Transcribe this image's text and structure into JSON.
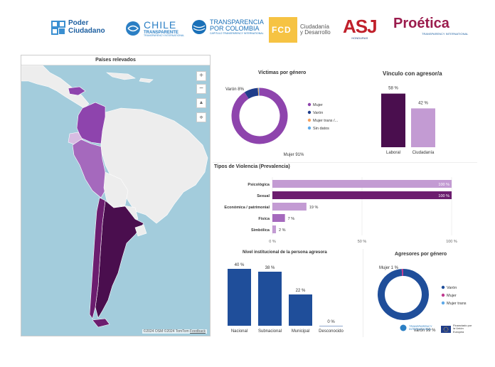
{
  "logos": {
    "poder": [
      "Poder",
      "Ciudadano"
    ],
    "chile": "CHILE",
    "chile_sub": "TRANSPARENTE",
    "chile_tag": "TRANSPARENCY INTERNATIONAL",
    "colombia": [
      "TRANSPARENCIA",
      "POR COLOMBIA"
    ],
    "colombia_tag": "CAPITULO TRANSPARENCY INTERNATIONAL",
    "fcd": "FCD",
    "fcd_text": [
      "Ciudadanía",
      "y Desarrollo"
    ],
    "asj": "ASJ",
    "asj_sub": "HONDURAS",
    "proetica": "Proética",
    "proetica_tag": "TRANSPARENCY INTERNATIONAL"
  },
  "map": {
    "title": "Países relevados",
    "zoom_in": "+",
    "zoom_out": "−",
    "compass": "▲",
    "locate": "⌖",
    "attribution": "©2024 OSM ©2024 TomTom",
    "feedback": "Feedback"
  },
  "footer": {
    "ti_name": "TRANSPARENCY INTERNATIONAL",
    "eu_text": "Financiado por la Unión Europea"
  },
  "chart_data": [
    {
      "id": "victimas",
      "type": "pie",
      "title": "Víctimas por género",
      "categories": [
        "Mujer",
        "Varón",
        "Mujer trans /...",
        "Sin datos"
      ],
      "values": [
        91,
        8,
        0.5,
        0.5
      ],
      "colors": [
        "#8e44ad",
        "#1f3d8a",
        "#f4a261",
        "#5da9e9"
      ],
      "labels": [
        "Mujer 91%",
        "Varón 8%"
      ],
      "legend": "right"
    },
    {
      "id": "vinculo",
      "type": "bar",
      "title": "Vínculo con agresor/a",
      "categories": [
        "Laboral",
        "Ciudadanía"
      ],
      "values": [
        58,
        42
      ],
      "value_labels": [
        "58 %",
        "42 %"
      ],
      "colors": [
        "#4a0e4e",
        "#c39bd3"
      ],
      "ylim": [
        0,
        60
      ]
    },
    {
      "id": "tipos",
      "type": "bar",
      "orientation": "horizontal",
      "title": "Tipos de Violencia (Prevalencia)",
      "categories": [
        "Psicológica",
        "Sexual",
        "Económica / patrimonial",
        "Física",
        "Simbólica"
      ],
      "values": [
        100,
        100,
        19,
        7,
        2
      ],
      "value_labels": [
        "100 %",
        "100 %",
        "19 %",
        "7 %",
        "2 %"
      ],
      "colors": [
        "#c39bd3",
        "#6c1d6f",
        "#c39bd3",
        "#a569bd",
        "#c39bd3"
      ],
      "ticks": [
        "0 %",
        "50 %",
        "100 %"
      ],
      "xlim": [
        0,
        100
      ],
      "grid": true
    },
    {
      "id": "nivel",
      "type": "bar",
      "title": "Nivel institucional de la persona agresora",
      "categories": [
        "Nacional",
        "Subnacional",
        "Municipal",
        "Desconocido"
      ],
      "values": [
        40,
        38,
        22,
        0
      ],
      "value_labels": [
        "40 %",
        "38 %",
        "22 %",
        "0 %"
      ],
      "color": "#1f4e9a",
      "ylim": [
        0,
        40
      ]
    },
    {
      "id": "agresores",
      "type": "pie",
      "title": "Agresores por género",
      "categories": [
        "Varón",
        "Mujer",
        "Mujer trans"
      ],
      "values": [
        99,
        1,
        0
      ],
      "colors": [
        "#1f4e9a",
        "#c0398f",
        "#5da9e9"
      ],
      "labels": [
        "Mujer 1 %",
        "Varón 99 %"
      ],
      "legend": "right"
    }
  ]
}
